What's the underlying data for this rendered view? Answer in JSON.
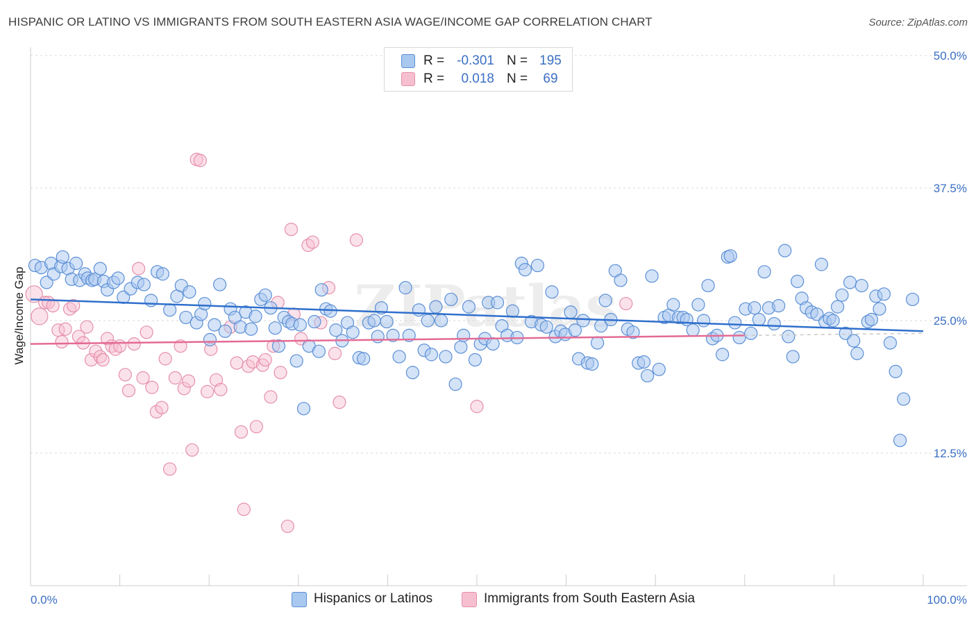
{
  "title": "HISPANIC OR LATINO VS IMMIGRANTS FROM SOUTH EASTERN ASIA WAGE/INCOME GAP CORRELATION CHART",
  "source": "Source: ZipAtlas.com",
  "watermark": "ZIPatlas",
  "colors": {
    "blue_fill": "#a9c8ef",
    "blue_stroke": "#5b8fd6",
    "blue_line": "#2f6fcc",
    "pink_fill": "#f6bfd0",
    "pink_stroke": "#e58fab",
    "pink_line": "#e46a94",
    "grid": "#d9d9d9",
    "tick_text": "#3a6fc2"
  },
  "legend": {
    "rows": [
      {
        "r_label": "R =",
        "r_value": "-0.301",
        "n_label": "N =",
        "n_value": "195"
      },
      {
        "r_label": "R =",
        "r_value": "0.018",
        "n_label": "N =",
        "n_value": "69"
      }
    ]
  },
  "bottom_legend": {
    "series1": "Hispanics or Latinos",
    "series2": "Immigrants from South Eastern Asia"
  },
  "chart_data": {
    "type": "scatter",
    "title": "HISPANIC OR LATINO VS IMMIGRANTS FROM SOUTH EASTERN ASIA WAGE/INCOME GAP CORRELATION CHART",
    "xlabel": "",
    "ylabel": "Wage/Income Gap",
    "xlim": [
      0,
      100
    ],
    "ylim": [
      0,
      52
    ],
    "x_tick_labels": [
      "0.0%",
      "100.0%"
    ],
    "y_ticks": [
      12.5,
      25.0,
      37.5,
      50.0
    ],
    "y_tick_labels": [
      "12.5%",
      "25.0%",
      "37.5%",
      "50.0%"
    ],
    "grid": true,
    "legend_position": "top-center",
    "series": [
      {
        "name": "Hispanics or Latinos",
        "color": "#a9c8ef",
        "trend": {
          "x": [
            0,
            100
          ],
          "y": [
            27.0,
            24.0
          ]
        },
        "points": [
          [
            0.5,
            30.2
          ],
          [
            1.2,
            30.0
          ],
          [
            1.8,
            28.6
          ],
          [
            2.3,
            30.4
          ],
          [
            2.6,
            29.4
          ],
          [
            3.4,
            30.1
          ],
          [
            3.6,
            31.0
          ],
          [
            4.2,
            29.9
          ],
          [
            4.6,
            28.9
          ],
          [
            5.1,
            30.4
          ],
          [
            5.5,
            28.8
          ],
          [
            6.1,
            29.4
          ],
          [
            6.4,
            29.0
          ],
          [
            6.9,
            28.8
          ],
          [
            7.2,
            28.9
          ],
          [
            7.8,
            29.9
          ],
          [
            8.2,
            28.7
          ],
          [
            8.6,
            27.9
          ],
          [
            9.3,
            28.6
          ],
          [
            9.8,
            29.0
          ],
          [
            10.4,
            27.2
          ],
          [
            11.2,
            28.0
          ],
          [
            12.0,
            28.6
          ],
          [
            12.7,
            28.4
          ],
          [
            13.5,
            26.9
          ],
          [
            14.2,
            29.6
          ],
          [
            14.8,
            29.4
          ],
          [
            15.6,
            26.0
          ],
          [
            16.4,
            27.3
          ],
          [
            16.9,
            28.3
          ],
          [
            17.4,
            25.3
          ],
          [
            17.8,
            27.7
          ],
          [
            18.6,
            24.8
          ],
          [
            19.1,
            25.6
          ],
          [
            19.5,
            26.6
          ],
          [
            20.1,
            23.2
          ],
          [
            20.6,
            24.6
          ],
          [
            21.2,
            28.4
          ],
          [
            21.8,
            24.0
          ],
          [
            22.4,
            26.1
          ],
          [
            22.9,
            25.3
          ],
          [
            23.5,
            24.4
          ],
          [
            24.1,
            25.8
          ],
          [
            24.7,
            24.2
          ],
          [
            25.2,
            25.4
          ],
          [
            25.8,
            27.0
          ],
          [
            26.3,
            27.4
          ],
          [
            26.9,
            26.2
          ],
          [
            27.4,
            24.3
          ],
          [
            27.8,
            22.6
          ],
          [
            28.4,
            25.3
          ],
          [
            28.9,
            24.9
          ],
          [
            29.3,
            24.7
          ],
          [
            29.8,
            21.2
          ],
          [
            30.2,
            24.6
          ],
          [
            30.6,
            16.7
          ],
          [
            31.2,
            22.6
          ],
          [
            31.8,
            24.9
          ],
          [
            32.3,
            22.1
          ],
          [
            32.6,
            27.9
          ],
          [
            33.1,
            26.1
          ],
          [
            33.6,
            25.9
          ],
          [
            34.2,
            24.1
          ],
          [
            34.9,
            23.1
          ],
          [
            35.5,
            24.8
          ],
          [
            36.1,
            23.9
          ],
          [
            36.8,
            21.5
          ],
          [
            37.3,
            21.4
          ],
          [
            37.9,
            24.8
          ],
          [
            38.5,
            25.0
          ],
          [
            38.9,
            23.5
          ],
          [
            39.3,
            26.2
          ],
          [
            39.9,
            24.9
          ],
          [
            40.6,
            23.6
          ],
          [
            41.3,
            21.6
          ],
          [
            42.0,
            28.1
          ],
          [
            42.4,
            23.6
          ],
          [
            42.8,
            20.1
          ],
          [
            43.5,
            26.0
          ],
          [
            44.1,
            22.2
          ],
          [
            44.5,
            25.0
          ],
          [
            44.9,
            21.8
          ],
          [
            45.4,
            26.3
          ],
          [
            46.0,
            25.0
          ],
          [
            46.5,
            21.6
          ],
          [
            47.1,
            27.0
          ],
          [
            47.6,
            19.0
          ],
          [
            48.2,
            22.5
          ],
          [
            48.5,
            23.6
          ],
          [
            49.1,
            26.3
          ],
          [
            49.8,
            21.3
          ],
          [
            50.4,
            22.8
          ],
          [
            50.9,
            23.3
          ],
          [
            51.3,
            26.7
          ],
          [
            51.8,
            22.8
          ],
          [
            52.3,
            26.7
          ],
          [
            52.8,
            24.5
          ],
          [
            53.4,
            23.6
          ],
          [
            54.0,
            25.9
          ],
          [
            54.5,
            23.4
          ],
          [
            55.0,
            30.4
          ],
          [
            55.4,
            29.8
          ],
          [
            56.1,
            24.9
          ],
          [
            56.8,
            30.2
          ],
          [
            57.2,
            24.6
          ],
          [
            57.8,
            24.4
          ],
          [
            58.4,
            27.7
          ],
          [
            58.8,
            23.5
          ],
          [
            59.4,
            24.0
          ],
          [
            59.9,
            23.7
          ],
          [
            60.5,
            25.8
          ],
          [
            61.0,
            24.1
          ],
          [
            61.4,
            21.4
          ],
          [
            61.9,
            25.0
          ],
          [
            62.4,
            21.0
          ],
          [
            62.9,
            20.9
          ],
          [
            63.5,
            22.9
          ],
          [
            63.9,
            24.5
          ],
          [
            64.4,
            26.9
          ],
          [
            65.0,
            25.1
          ],
          [
            65.5,
            29.7
          ],
          [
            66.1,
            28.8
          ],
          [
            66.9,
            24.2
          ],
          [
            67.5,
            23.9
          ],
          [
            68.1,
            21.0
          ],
          [
            68.7,
            21.1
          ],
          [
            69.1,
            19.8
          ],
          [
            69.6,
            29.2
          ],
          [
            70.4,
            20.4
          ],
          [
            71.0,
            25.3
          ],
          [
            71.5,
            25.5
          ],
          [
            72.0,
            26.5
          ],
          [
            72.6,
            25.3
          ],
          [
            73.1,
            25.3
          ],
          [
            73.5,
            25.1
          ],
          [
            74.2,
            24.1
          ],
          [
            74.8,
            26.5
          ],
          [
            75.4,
            25.0
          ],
          [
            75.9,
            28.3
          ],
          [
            76.4,
            23.3
          ],
          [
            76.9,
            23.6
          ],
          [
            77.5,
            21.8
          ],
          [
            78.1,
            31.0
          ],
          [
            78.4,
            31.1
          ],
          [
            78.9,
            24.8
          ],
          [
            79.4,
            23.4
          ],
          [
            80.1,
            26.1
          ],
          [
            80.7,
            23.8
          ],
          [
            81.1,
            26.2
          ],
          [
            81.6,
            25.1
          ],
          [
            82.2,
            29.6
          ],
          [
            82.7,
            26.2
          ],
          [
            83.3,
            24.7
          ],
          [
            83.8,
            26.4
          ],
          [
            84.5,
            31.6
          ],
          [
            84.9,
            23.5
          ],
          [
            85.4,
            21.6
          ],
          [
            85.9,
            28.7
          ],
          [
            86.4,
            27.1
          ],
          [
            86.9,
            26.2
          ],
          [
            87.5,
            25.8
          ],
          [
            88.1,
            25.6
          ],
          [
            88.6,
            30.3
          ],
          [
            89.0,
            24.9
          ],
          [
            89.5,
            25.2
          ],
          [
            89.9,
            25.0
          ],
          [
            90.4,
            26.3
          ],
          [
            90.9,
            27.4
          ],
          [
            91.3,
            23.8
          ],
          [
            91.8,
            28.6
          ],
          [
            92.2,
            23.1
          ],
          [
            92.6,
            21.9
          ],
          [
            93.1,
            28.3
          ],
          [
            93.8,
            24.9
          ],
          [
            94.2,
            25.1
          ],
          [
            94.7,
            27.3
          ],
          [
            95.1,
            26.1
          ],
          [
            95.6,
            27.5
          ],
          [
            96.3,
            22.9
          ],
          [
            96.9,
            20.2
          ],
          [
            97.4,
            13.7
          ],
          [
            97.8,
            17.6
          ],
          [
            98.8,
            27.0
          ]
        ]
      },
      {
        "name": "Immigrants from South Eastern Asia",
        "color": "#f6bfd0",
        "trend": {
          "x": [
            0,
            80
          ],
          "y": [
            22.8,
            23.6
          ]
        },
        "points": [
          [
            0.4,
            27.5
          ],
          [
            1.0,
            25.4
          ],
          [
            1.6,
            26.7
          ],
          [
            2.0,
            26.7
          ],
          [
            2.5,
            26.4
          ],
          [
            3.1,
            24.1
          ],
          [
            3.5,
            23.0
          ],
          [
            3.9,
            24.2
          ],
          [
            4.4,
            26.1
          ],
          [
            4.8,
            26.4
          ],
          [
            5.4,
            23.5
          ],
          [
            5.9,
            22.9
          ],
          [
            6.3,
            24.4
          ],
          [
            6.8,
            21.3
          ],
          [
            7.3,
            22.1
          ],
          [
            7.8,
            21.6
          ],
          [
            8.1,
            21.3
          ],
          [
            8.6,
            23.3
          ],
          [
            9.1,
            22.6
          ],
          [
            9.5,
            22.3
          ],
          [
            10.0,
            22.6
          ],
          [
            10.6,
            19.9
          ],
          [
            11.0,
            18.4
          ],
          [
            11.6,
            22.8
          ],
          [
            12.1,
            29.9
          ],
          [
            12.6,
            19.6
          ],
          [
            13.0,
            23.9
          ],
          [
            13.6,
            18.7
          ],
          [
            14.1,
            16.4
          ],
          [
            14.7,
            16.8
          ],
          [
            15.1,
            21.4
          ],
          [
            15.6,
            11.0
          ],
          [
            16.2,
            19.6
          ],
          [
            16.8,
            22.6
          ],
          [
            17.2,
            18.6
          ],
          [
            17.7,
            19.3
          ],
          [
            18.1,
            12.8
          ],
          [
            18.6,
            40.2
          ],
          [
            19.0,
            40.1
          ],
          [
            19.8,
            18.3
          ],
          [
            20.2,
            22.3
          ],
          [
            20.8,
            19.4
          ],
          [
            21.3,
            18.5
          ],
          [
            22.4,
            24.4
          ],
          [
            23.1,
            21.0
          ],
          [
            23.6,
            14.5
          ],
          [
            23.9,
            7.2
          ],
          [
            24.4,
            20.7
          ],
          [
            24.9,
            21.1
          ],
          [
            25.3,
            15.0
          ],
          [
            26.0,
            20.8
          ],
          [
            26.3,
            21.3
          ],
          [
            26.9,
            17.8
          ],
          [
            27.2,
            22.6
          ],
          [
            27.7,
            26.7
          ],
          [
            28.0,
            20.1
          ],
          [
            28.8,
            5.6
          ],
          [
            29.2,
            33.6
          ],
          [
            29.5,
            25.6
          ],
          [
            30.3,
            23.3
          ],
          [
            31.1,
            32.1
          ],
          [
            31.6,
            32.4
          ],
          [
            32.5,
            24.8
          ],
          [
            33.4,
            28.1
          ],
          [
            34.1,
            21.9
          ],
          [
            34.6,
            17.3
          ],
          [
            36.5,
            32.6
          ],
          [
            50.0,
            16.9
          ],
          [
            66.7,
            26.6
          ]
        ]
      }
    ],
    "watermark": "ZIPatlas"
  }
}
